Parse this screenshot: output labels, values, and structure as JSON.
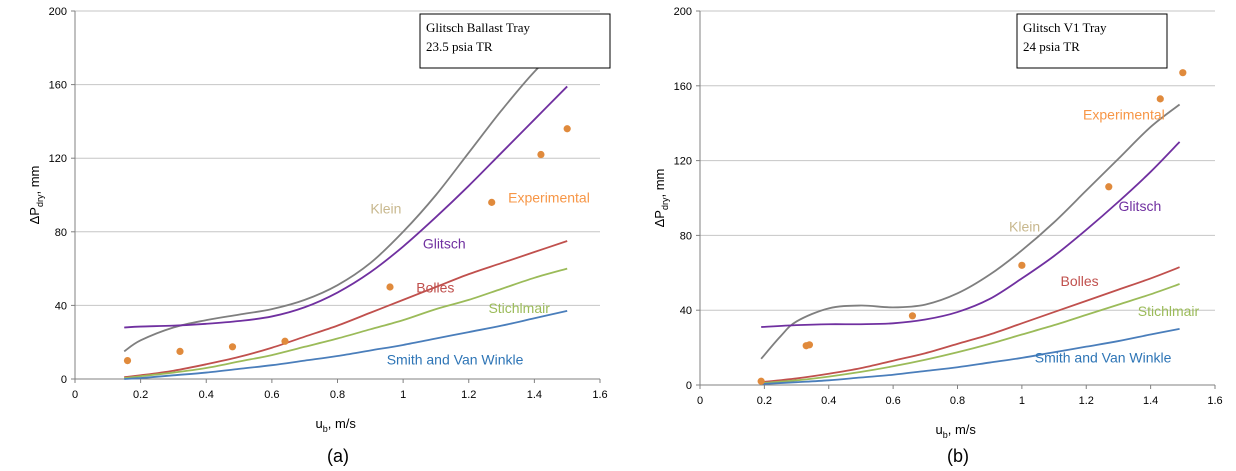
{
  "chart_data": [
    {
      "type": "line",
      "caption": "(a)",
      "note": [
        "Glitsch Ballast Tray",
        "23.5 psia TR"
      ],
      "xlabel": {
        "main": "u",
        "sub": "b",
        "rest": ", m/s"
      },
      "ylabel": {
        "main": "ΔP",
        "sub": "dry",
        "rest": ", mm"
      },
      "xlim": [
        0,
        1.6
      ],
      "ylim": [
        0,
        200
      ],
      "xticks": [
        0,
        0.2,
        0.4,
        0.6,
        0.8,
        1,
        1.2,
        1.4,
        1.6
      ],
      "yticks": [
        0,
        40,
        80,
        120,
        160,
        200
      ],
      "grid": "horizontal",
      "series": [
        {
          "label": "Klein",
          "color": "#7f7f7f",
          "label_color": "#c8b88e",
          "label_at": [
            0.9,
            90
          ],
          "x": [
            0.15,
            0.2,
            0.3,
            0.4,
            0.5,
            0.6,
            0.7,
            0.8,
            0.9,
            1.0,
            1.1,
            1.2,
            1.3,
            1.4,
            1.5
          ],
          "y": [
            15,
            21,
            28,
            32,
            35,
            38,
            43,
            51,
            63,
            80,
            100,
            123,
            146,
            167,
            184
          ]
        },
        {
          "label": "Glitsch",
          "color": "#7030a0",
          "label_color": "#7030a0",
          "label_at": [
            1.06,
            71
          ],
          "x": [
            0.15,
            0.2,
            0.3,
            0.4,
            0.5,
            0.6,
            0.7,
            0.8,
            0.9,
            1.0,
            1.1,
            1.2,
            1.3,
            1.4,
            1.5
          ],
          "y": [
            28,
            28.5,
            29,
            30,
            31.5,
            34,
            39,
            47,
            58,
            72,
            88,
            105,
            123,
            141,
            159
          ]
        },
        {
          "label": "Bolles",
          "color": "#c0504d",
          "label_color": "#c0504d",
          "label_at": [
            1.04,
            47
          ],
          "x": [
            0.15,
            0.2,
            0.3,
            0.4,
            0.5,
            0.6,
            0.7,
            0.8,
            0.9,
            1.0,
            1.1,
            1.2,
            1.3,
            1.4,
            1.5
          ],
          "y": [
            1,
            2,
            4.5,
            8,
            12,
            17,
            23,
            29,
            36,
            43,
            50,
            57,
            63,
            69,
            75
          ]
        },
        {
          "label": "Stichlmair",
          "color": "#9bbb59",
          "label_color": "#9bbb59",
          "label_at": [
            1.26,
            36
          ],
          "x": [
            0.15,
            0.2,
            0.3,
            0.4,
            0.5,
            0.6,
            0.7,
            0.8,
            0.9,
            1.0,
            1.1,
            1.2,
            1.3,
            1.4,
            1.5
          ],
          "y": [
            0.5,
            1.5,
            3.5,
            6,
            9.5,
            13,
            17.5,
            22,
            27,
            32,
            38,
            43,
            49,
            55,
            60
          ]
        },
        {
          "label": "Smith and Van Winkle",
          "color": "#4a7ebb",
          "label_color": "#2e75b6",
          "label_at": [
            0.95,
            8
          ],
          "x": [
            0.15,
            0.2,
            0.3,
            0.4,
            0.5,
            0.6,
            0.7,
            0.8,
            0.9,
            1.0,
            1.1,
            1.2,
            1.3,
            1.4,
            1.5
          ],
          "y": [
            0,
            0.5,
            2,
            3.5,
            5.5,
            7.5,
            10,
            12.5,
            15.5,
            18.5,
            22,
            25.5,
            29,
            33,
            37
          ]
        },
        {
          "label": "Experimental",
          "color": "#e08a3c",
          "label_color": "#f79646",
          "label_at": [
            1.32,
            96
          ],
          "markers": true,
          "x": [
            0.16,
            0.32,
            0.48,
            0.64,
            0.96,
            1.27,
            1.42,
            1.5
          ],
          "y": [
            10,
            15,
            17.5,
            20.5,
            50,
            96,
            122,
            136
          ]
        }
      ]
    },
    {
      "type": "line",
      "caption": "(b)",
      "note": [
        "Glitsch V1 Tray",
        "24 psia TR"
      ],
      "xlabel": {
        "main": "u",
        "sub": "b",
        "rest": ", m/s"
      },
      "ylabel": {
        "main": "ΔP",
        "sub": "dry",
        "rest": ", mm"
      },
      "xlim": [
        0,
        1.6
      ],
      "ylim": [
        0,
        200
      ],
      "xticks": [
        0,
        0.2,
        0.4,
        0.6,
        0.8,
        1,
        1.2,
        1.4,
        1.6
      ],
      "yticks": [
        0,
        40,
        80,
        120,
        160,
        200
      ],
      "grid": "horizontal",
      "series": [
        {
          "label": "Klein",
          "color": "#7f7f7f",
          "label_color": "#c8b88e",
          "label_at": [
            0.96,
            82
          ],
          "x": [
            0.19,
            0.25,
            0.3,
            0.4,
            0.5,
            0.6,
            0.7,
            0.8,
            0.9,
            1.0,
            1.1,
            1.2,
            1.3,
            1.4,
            1.49
          ],
          "y": [
            14,
            26,
            34,
            41,
            42.5,
            41.5,
            43,
            49,
            59,
            72,
            87,
            104,
            121,
            138,
            150
          ]
        },
        {
          "label": "Glitsch",
          "color": "#7030a0",
          "label_color": "#7030a0",
          "label_at": [
            1.3,
            93
          ],
          "x": [
            0.19,
            0.3,
            0.4,
            0.5,
            0.6,
            0.7,
            0.8,
            0.9,
            1.0,
            1.1,
            1.2,
            1.3,
            1.4,
            1.49
          ],
          "y": [
            31,
            32,
            32.5,
            32.5,
            33,
            35,
            39,
            46,
            57,
            69,
            83,
            98,
            114,
            130
          ]
        },
        {
          "label": "Bolles",
          "color": "#c0504d",
          "label_color": "#c0504d",
          "label_at": [
            1.12,
            53
          ],
          "x": [
            0.19,
            0.3,
            0.4,
            0.5,
            0.6,
            0.7,
            0.8,
            0.9,
            1.0,
            1.1,
            1.2,
            1.3,
            1.4,
            1.49
          ],
          "y": [
            1.5,
            3.5,
            6,
            9,
            13,
            17,
            22,
            27,
            33,
            39,
            45,
            51,
            57,
            63
          ]
        },
        {
          "label": "Stichlmair",
          "color": "#9bbb59",
          "label_color": "#9bbb59",
          "label_at": [
            1.36,
            37
          ],
          "x": [
            0.19,
            0.3,
            0.4,
            0.5,
            0.6,
            0.7,
            0.8,
            0.9,
            1.0,
            1.1,
            1.2,
            1.3,
            1.4,
            1.49
          ],
          "y": [
            1,
            2.5,
            4.5,
            7,
            10,
            13.5,
            17.5,
            22,
            27,
            32,
            37.5,
            43,
            48.5,
            54
          ]
        },
        {
          "label": "Smith and Van Winkle",
          "color": "#4a7ebb",
          "label_color": "#2e75b6",
          "label_at": [
            1.04,
            12
          ],
          "x": [
            0.19,
            0.3,
            0.4,
            0.5,
            0.6,
            0.7,
            0.8,
            0.9,
            1.0,
            1.1,
            1.2,
            1.3,
            1.4,
            1.49
          ],
          "y": [
            0.5,
            1.5,
            2.5,
            4,
            5.5,
            7.5,
            9.5,
            12,
            14.5,
            17.5,
            20.5,
            23.5,
            27,
            30
          ]
        },
        {
          "label": "Experimental",
          "color": "#e08a3c",
          "label_color": "#f79646",
          "label_at": [
            1.19,
            142
          ],
          "markers": true,
          "x": [
            0.19,
            0.33,
            0.34,
            0.66,
            1.0,
            1.27,
            1.43,
            1.5
          ],
          "y": [
            2,
            21,
            21.5,
            37,
            64,
            106,
            153,
            167
          ]
        }
      ]
    }
  ]
}
